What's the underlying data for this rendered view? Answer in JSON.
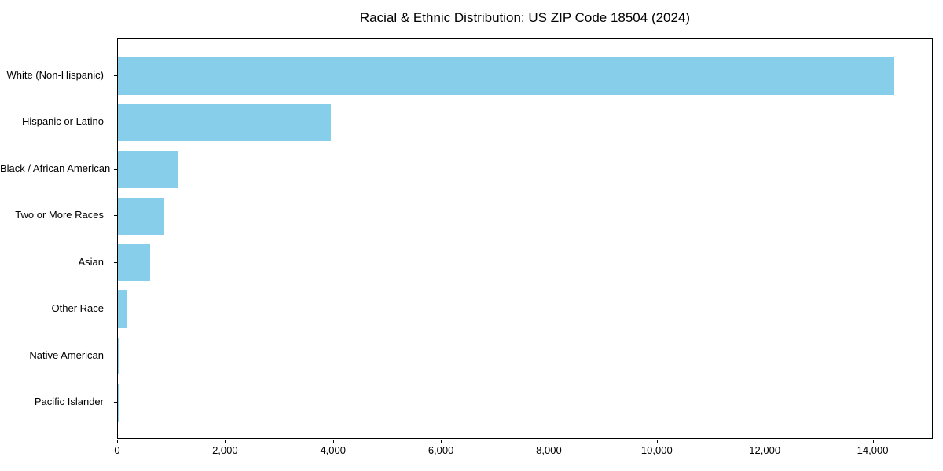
{
  "chart_data": {
    "type": "bar",
    "orientation": "horizontal",
    "title": "Racial & Ethnic Distribution: US ZIP Code 18504 (2024)",
    "categories": [
      "White (Non-Hispanic)",
      "Hispanic or Latino",
      "Black / African American",
      "Two or More Races",
      "Asian",
      "Other Race",
      "Native American",
      "Pacific Islander"
    ],
    "values": [
      14390,
      3950,
      1120,
      865,
      590,
      160,
      20,
      5
    ],
    "xlabel": "",
    "ylabel": "",
    "xlim": [
      0,
      15113
    ],
    "x_ticks": [
      0,
      2000,
      4000,
      6000,
      8000,
      10000,
      12000,
      14000
    ],
    "x_tick_labels": [
      "0",
      "2,000",
      "4,000",
      "6,000",
      "8,000",
      "10,000",
      "12,000",
      "14,000"
    ],
    "bar_color": "#87CEEB",
    "axis_color": "#000000",
    "background_color": "#FFFFFF",
    "grid": false,
    "legend": false
  }
}
